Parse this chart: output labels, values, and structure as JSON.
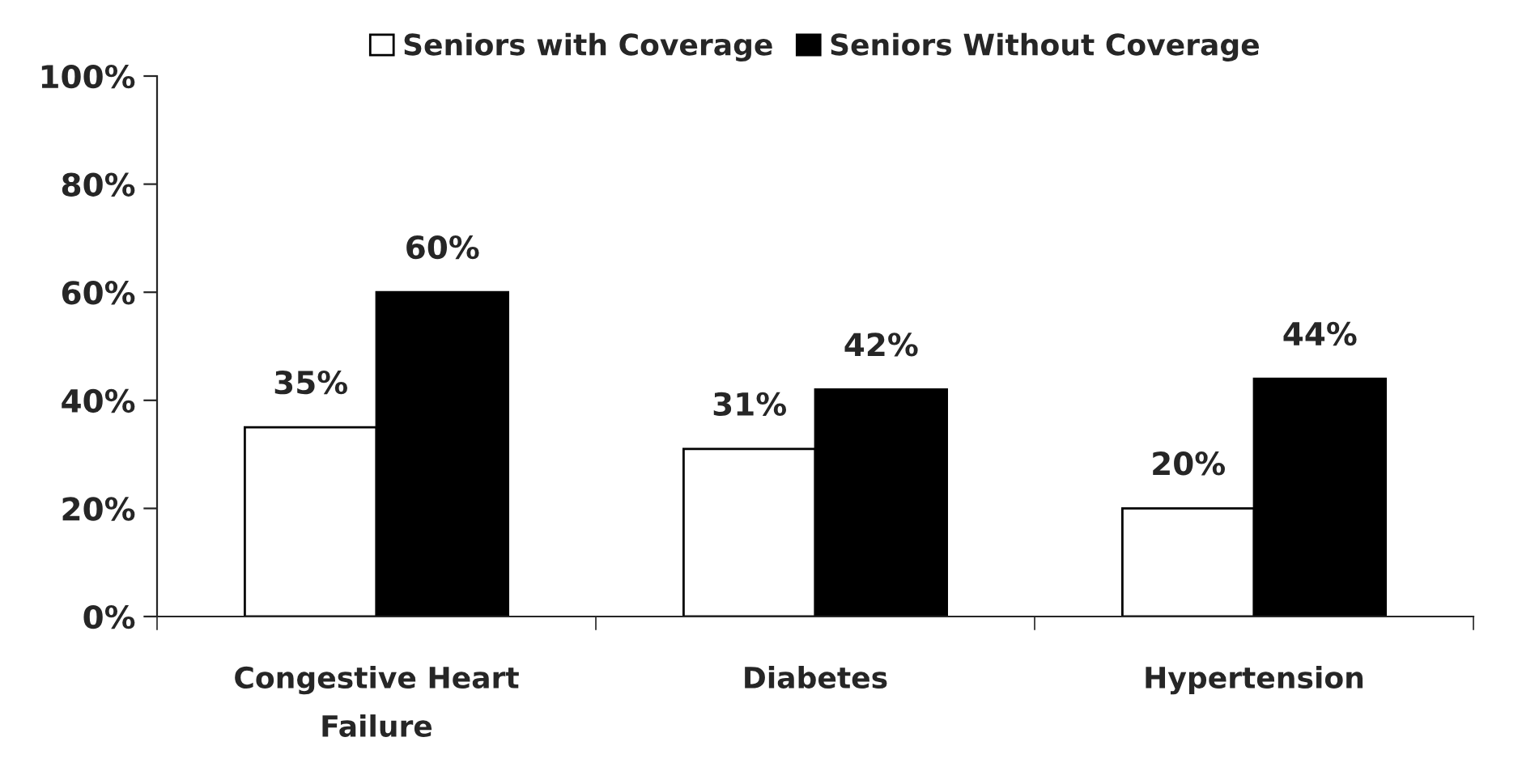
{
  "chart_data": {
    "type": "bar",
    "categories": [
      "Congestive Heart\nFailure",
      "Diabetes",
      "Hypertension"
    ],
    "series": [
      {
        "name": "Seniors with Coverage",
        "color": "#ffffff",
        "values": [
          35,
          31,
          20
        ],
        "value_labels": [
          "35%",
          "31%",
          "20%"
        ]
      },
      {
        "name": "Seniors Without Coverage",
        "color": "#000000",
        "values": [
          60,
          42,
          44
        ],
        "value_labels": [
          "60%",
          "42%",
          "44%"
        ]
      }
    ],
    "ylim": [
      0,
      100
    ],
    "yticks": [
      {
        "value": 0,
        "label": "0%"
      },
      {
        "value": 20,
        "label": "20%"
      },
      {
        "value": 40,
        "label": "40%"
      },
      {
        "value": 60,
        "label": "60%"
      },
      {
        "value": 80,
        "label": "80%"
      },
      {
        "value": 100,
        "label": "100%"
      }
    ],
    "grid": false,
    "legend": "top"
  }
}
